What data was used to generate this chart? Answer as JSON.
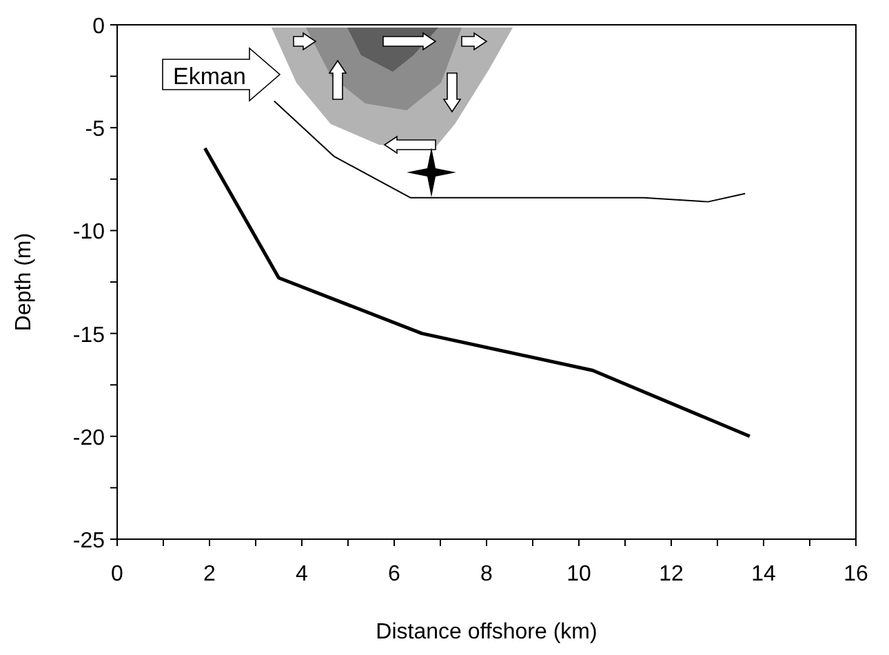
{
  "chart_data": {
    "type": "line",
    "xlabel": "Distance offshore (km)",
    "ylabel": "Depth (m)",
    "xlim": [
      0,
      16
    ],
    "ylim": [
      -25,
      0
    ],
    "xticks": [
      0,
      {
        "value": 1,
        "label": null
      },
      2,
      {
        "value": 3,
        "label": null
      },
      4,
      {
        "value": 5,
        "label": null
      },
      6,
      {
        "value": 7,
        "label": null
      },
      8,
      {
        "value": 9,
        "label": null
      },
      10,
      {
        "value": 11,
        "label": null
      },
      12,
      {
        "value": 13,
        "label": null
      },
      14,
      {
        "value": 15,
        "label": null
      },
      16
    ],
    "yticks": [
      -25,
      {
        "value": -22.5,
        "label": null
      },
      -20,
      {
        "value": -17.5,
        "label": null
      },
      -15,
      {
        "value": -12.5,
        "label": null
      },
      -10,
      {
        "value": -7.5,
        "label": null
      },
      -5,
      {
        "value": -2.5,
        "label": null
      },
      0
    ],
    "series": [
      {
        "color": "#000000",
        "x": [
          1.9,
          3.5,
          6.6,
          10.3,
          13.7
        ],
        "values": [
          -6,
          -12.3,
          -15,
          -16.8,
          -20
        ]
      },
      {
        "color": "#000000",
        "x": [
          3.4,
          4.7,
          6.35,
          11.4,
          12.8,
          13.6
        ],
        "values": [
          -3.7,
          -6.4,
          -8.4,
          -8.4,
          -8.6,
          -8.2
        ]
      }
    ],
    "annotations": [
      "Ekman"
    ]
  }
}
